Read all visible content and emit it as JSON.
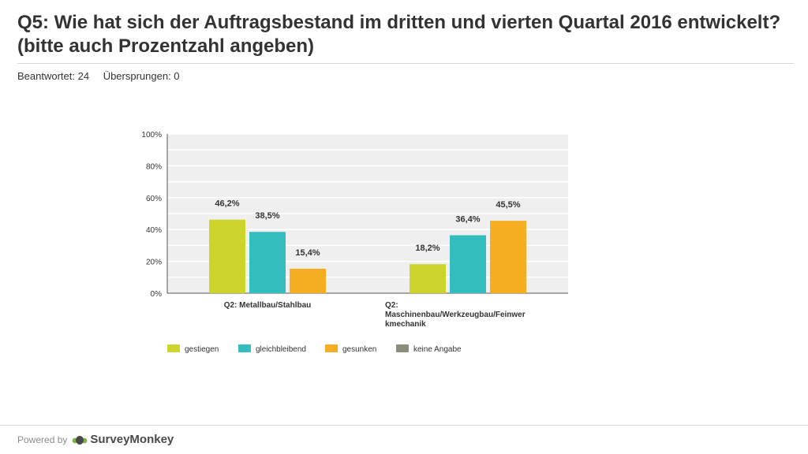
{
  "header": {
    "title": "Q5: Wie hat sich der Auftragsbestand im dritten und vierten Quartal 2016 entwickelt? (bitte auch Prozentzahl angeben)",
    "answered": "Beantwortet: 24",
    "skipped": "Übersprungen: 0"
  },
  "footer": {
    "powered_by": "Powered by",
    "brand": "SurveyMonkey"
  },
  "colors": {
    "gestiegen": "#cdd42c",
    "gleichbleibend": "#33bdbf",
    "gesunken": "#f5ae22",
    "keine_angabe": "#8a8c7e",
    "plot_bg": "#efefef",
    "grid": "#ffffff"
  },
  "chart_data": {
    "type": "bar",
    "title": "",
    "xlabel": "",
    "ylabel": "",
    "ylim": [
      0,
      100
    ],
    "yticks": [
      "0%",
      "20%",
      "40%",
      "60%",
      "80%",
      "100%"
    ],
    "categories": [
      [
        "Q2: Metallbau/Stahlbau"
      ],
      [
        "Q2:",
        "Maschinenbau/Werkzeugbau/Feinwer",
        "kmechanik"
      ]
    ],
    "series": [
      {
        "name": "gestiegen",
        "color": "#cdd42c",
        "values": [
          46.2,
          18.2
        ],
        "labels": [
          "46,2%",
          "18,2%"
        ]
      },
      {
        "name": "gleichbleibend",
        "color": "#33bdbf",
        "values": [
          38.5,
          36.4
        ],
        "labels": [
          "38,5%",
          "36,4%"
        ]
      },
      {
        "name": "gesunken",
        "color": "#f5ae22",
        "values": [
          15.4,
          45.5
        ],
        "labels": [
          "15,4%",
          "45,5%"
        ]
      },
      {
        "name": "keine Angabe",
        "color": "#8a8c7e",
        "values": [
          0,
          0
        ],
        "labels": [
          "",
          ""
        ]
      }
    ],
    "legend": "bottom"
  }
}
